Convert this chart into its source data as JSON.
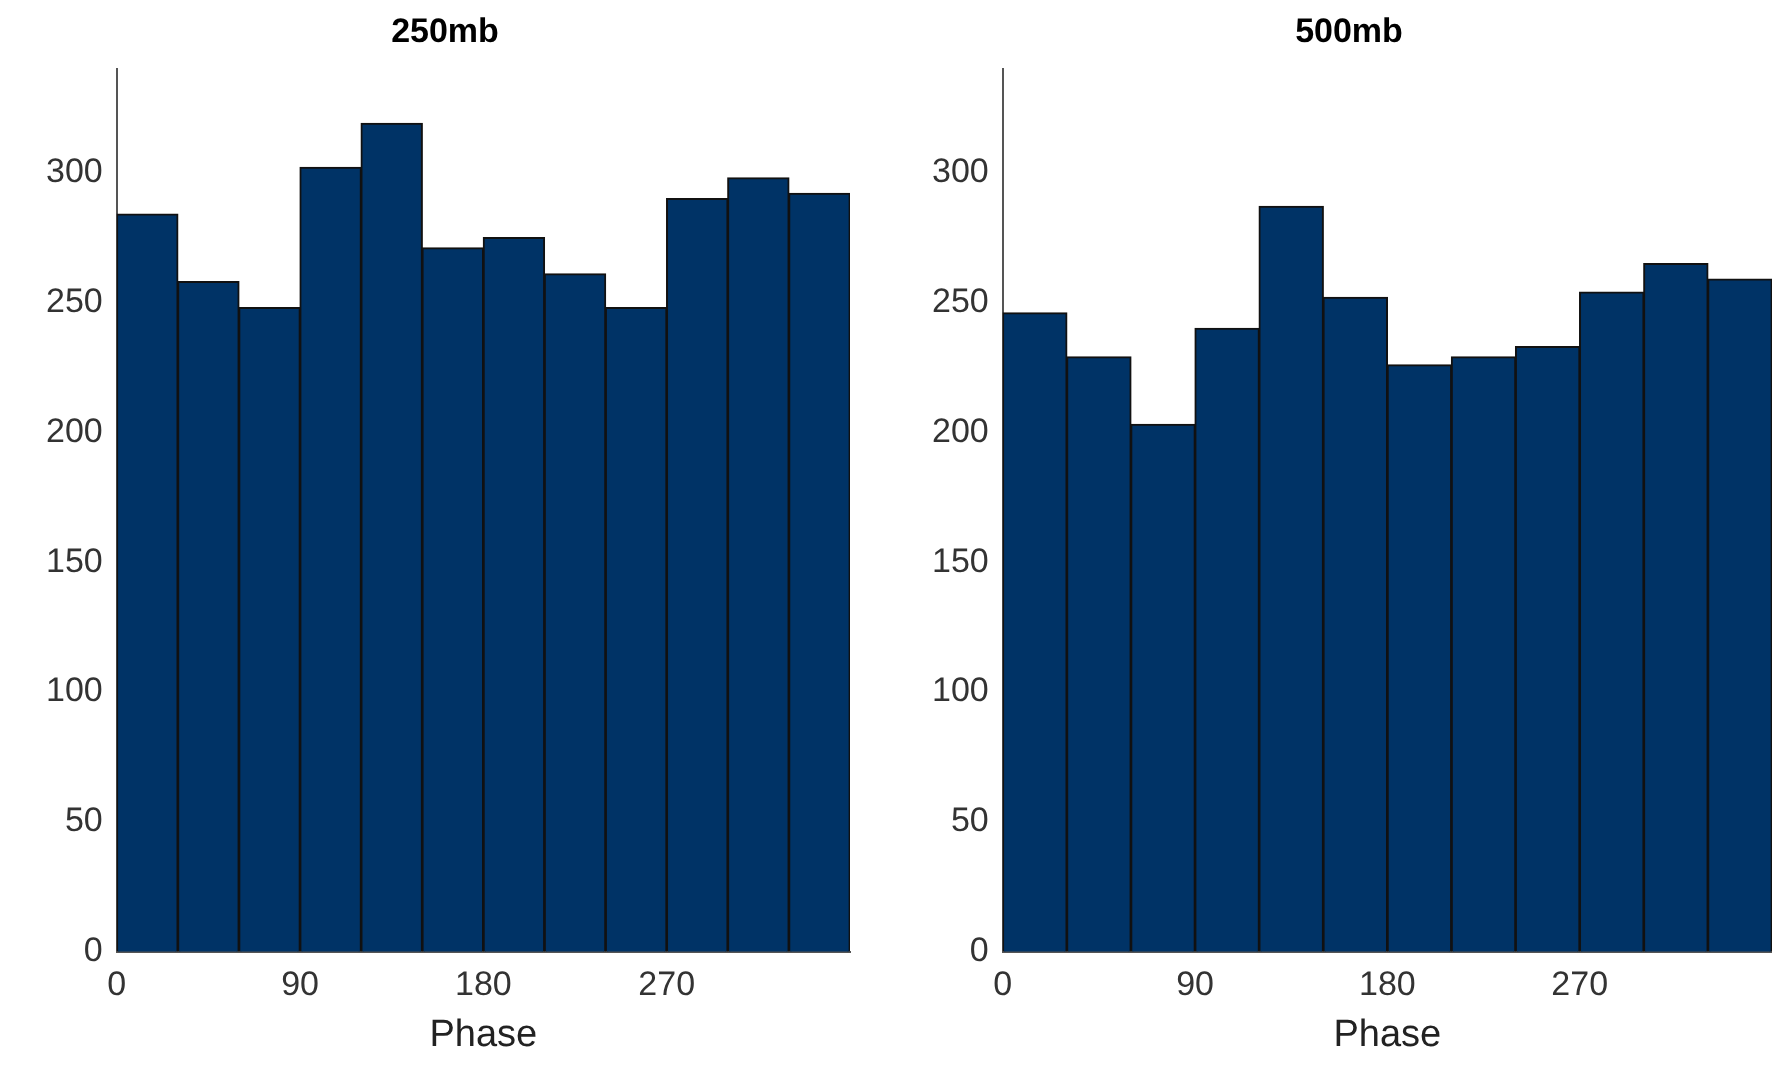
{
  "chart_data": [
    {
      "type": "histogram",
      "title": "250mb",
      "xlabel": "Phase",
      "color": "#003366",
      "bins": [
        0,
        30,
        60,
        90,
        120,
        150,
        180,
        210,
        240,
        270,
        300,
        330,
        360
      ],
      "values": [
        284,
        258,
        248,
        302,
        319,
        271,
        275,
        261,
        248,
        290,
        298,
        292
      ],
      "xlim": [
        0,
        360
      ],
      "xticks": [
        0,
        90,
        180,
        270
      ],
      "ylim": [
        0,
        340
      ],
      "yticks": [
        0,
        50,
        100,
        150,
        200,
        250,
        300
      ]
    },
    {
      "type": "histogram",
      "title": "500mb",
      "xlabel": "Phase",
      "color": "#003366",
      "bins": [
        0,
        30,
        60,
        90,
        120,
        150,
        180,
        210,
        240,
        270,
        300,
        330,
        360
      ],
      "values": [
        246,
        229,
        203,
        240,
        287,
        252,
        226,
        229,
        233,
        254,
        265,
        259
      ],
      "xlim": [
        0,
        360
      ],
      "xticks": [
        0,
        90,
        180,
        270
      ],
      "ylim": [
        0,
        340
      ],
      "yticks": [
        0,
        50,
        100,
        150,
        200,
        250,
        300
      ]
    }
  ]
}
